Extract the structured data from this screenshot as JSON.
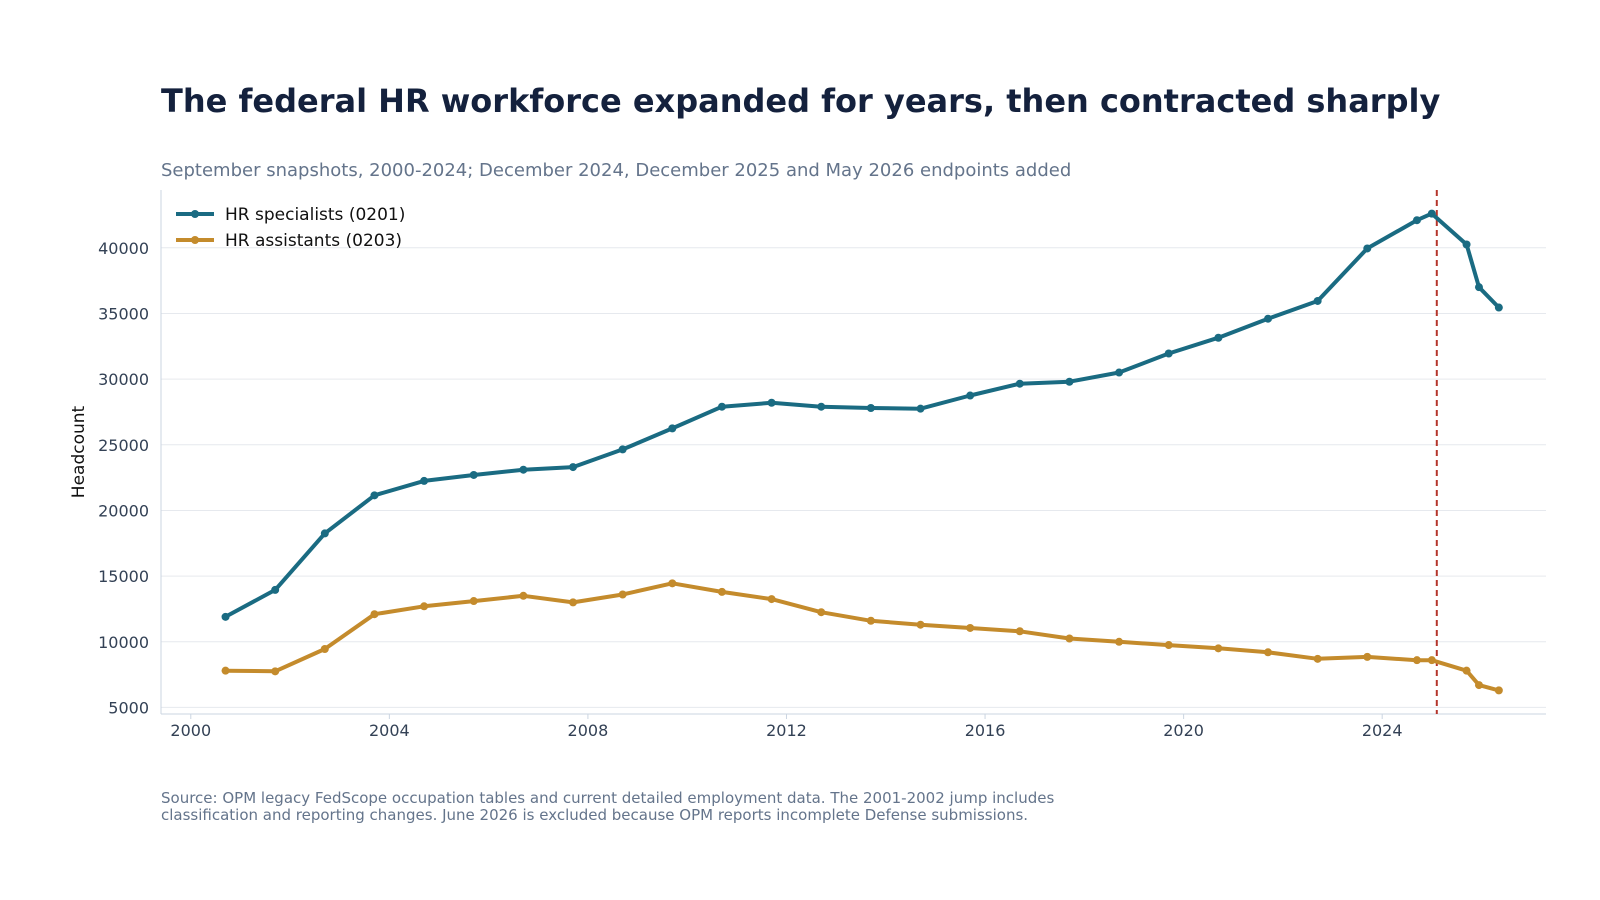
{
  "chart_data": {
    "type": "line",
    "title": "The federal HR workforce expanded for years, then contracted sharply",
    "subtitle": "September snapshots, 2000-2024; December 2024, December 2025 and May 2026 endpoints added",
    "xlabel": "",
    "ylabel": "Headcount",
    "xlim": [
      1999.4,
      2027.3
    ],
    "ylim": [
      4500,
      44400
    ],
    "xticks": [
      2000,
      2004,
      2008,
      2012,
      2016,
      2020,
      2024
    ],
    "yticks": [
      5000,
      10000,
      15000,
      20000,
      25000,
      30000,
      35000,
      40000
    ],
    "grid": "horizontal",
    "legend": "top-left",
    "reference_line_x": 2025.1,
    "series": [
      {
        "name": "HR specialists (0201)",
        "color": "#1a6b82",
        "x": [
          2000.7,
          2001.7,
          2002.7,
          2003.7,
          2004.7,
          2005.7,
          2006.7,
          2007.7,
          2008.7,
          2009.7,
          2010.7,
          2011.7,
          2012.7,
          2013.7,
          2014.7,
          2015.7,
          2016.7,
          2017.7,
          2018.7,
          2019.7,
          2020.7,
          2021.7,
          2022.7,
          2023.7,
          2024.7,
          2025.0,
          2025.7,
          2025.95,
          2026.35
        ],
        "y": [
          11900,
          13950,
          18250,
          21150,
          22250,
          22700,
          23100,
          23300,
          24650,
          26250,
          27900,
          28200,
          27900,
          27800,
          27750,
          28750,
          29650,
          29800,
          30500,
          31950,
          33150,
          34600,
          35950,
          39950,
          42100,
          42600,
          40250,
          37000,
          35450
        ]
      },
      {
        "name": "HR assistants (0203)",
        "color": "#c48b2c",
        "x": [
          2000.7,
          2001.7,
          2002.7,
          2003.7,
          2004.7,
          2005.7,
          2006.7,
          2007.7,
          2008.7,
          2009.7,
          2010.7,
          2011.7,
          2012.7,
          2013.7,
          2014.7,
          2015.7,
          2016.7,
          2017.7,
          2018.7,
          2019.7,
          2020.7,
          2021.7,
          2022.7,
          2023.7,
          2024.7,
          2025.0,
          2025.7,
          2025.95,
          2026.35
        ],
        "y": [
          7800,
          7750,
          9450,
          12100,
          12700,
          13100,
          13500,
          13000,
          13600,
          14450,
          13800,
          13250,
          12250,
          11600,
          11300,
          11050,
          10800,
          10250,
          10000,
          9750,
          9500,
          9200,
          8700,
          8850,
          8600,
          8600,
          7800,
          6700,
          6300
        ]
      }
    ]
  },
  "source": {
    "line1": "Source: OPM legacy FedScope occupation tables and current detailed employment data. The 2001-2002 jump includes",
    "line2": "classification and reporting changes. June 2026 is excluded because OPM reports incomplete Defense submissions."
  }
}
